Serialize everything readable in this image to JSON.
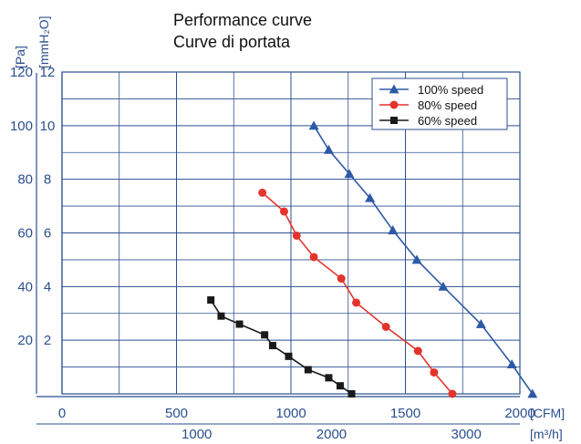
{
  "header": {
    "title_en": "Performance curve",
    "title_it": "Curve di portata"
  },
  "chart_data": {
    "type": "line",
    "title": "Performance curve",
    "subtitle": "Curve di portata",
    "x_primary": {
      "unit": "[CFM]",
      "ticks": [
        "0",
        "500",
        "1000",
        "1500",
        "2000"
      ],
      "range": [
        0,
        2000
      ]
    },
    "x_secondary": {
      "unit": "[m³/h]",
      "ticks": [
        "1000",
        "2000",
        "3000"
      ],
      "range_equiv_cfm": [
        0,
        2000
      ],
      "values": [
        1000,
        2000,
        3000
      ]
    },
    "y_left": {
      "unit": "[Pa]",
      "ticks": [
        "20",
        "40",
        "60",
        "80",
        "100",
        "120"
      ],
      "range": [
        0,
        120
      ]
    },
    "y_right": {
      "unit": "[mmH₂O]",
      "ticks": [
        "2",
        "4",
        "6",
        "8",
        "10",
        "12"
      ],
      "range": [
        0,
        12
      ]
    },
    "grid": true,
    "legend": {
      "placement": "top-right"
    },
    "series": [
      {
        "name": "100% speed",
        "color": "#2d5aa6",
        "marker": "triangle",
        "x": [
          1100,
          1165,
          1255,
          1345,
          1445,
          1550,
          1665,
          1830,
          1965,
          2055
        ],
        "y": [
          100,
          91,
          82,
          73,
          61,
          50,
          40,
          26,
          11,
          0
        ]
      },
      {
        "name": "80% speed",
        "color": "#e3342c",
        "marker": "circle",
        "x": [
          875,
          970,
          1025,
          1100,
          1220,
          1285,
          1415,
          1555,
          1625,
          1705
        ],
        "y": [
          75,
          68,
          59,
          51,
          43,
          34,
          25,
          16,
          8,
          0
        ]
      },
      {
        "name": "60% speed",
        "color": "#1a1a1a",
        "marker": "square",
        "x": [
          650,
          695,
          775,
          885,
          920,
          990,
          1075,
          1165,
          1215,
          1265
        ],
        "y": [
          35,
          29,
          26,
          22,
          18,
          14,
          9,
          6,
          3,
          0
        ]
      }
    ]
  }
}
